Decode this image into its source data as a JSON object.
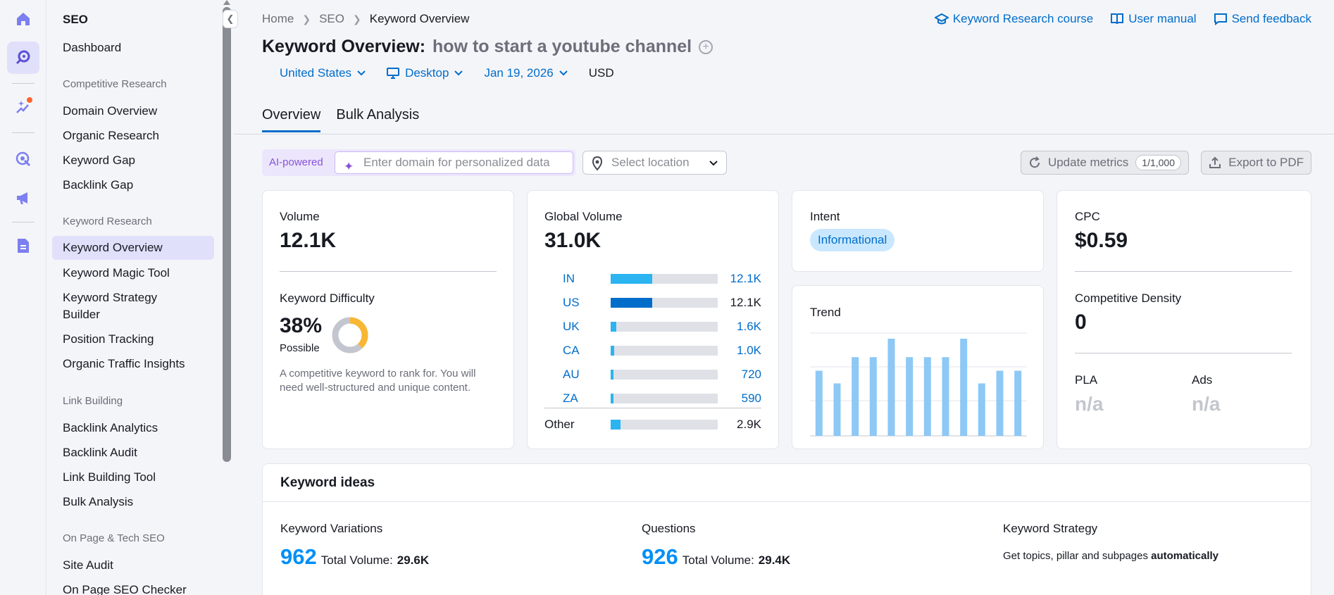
{
  "sidebar": {
    "title": "SEO",
    "dashboard": "Dashboard",
    "sections": {
      "competitive": "Competitive Research",
      "keyword": "Keyword Research",
      "link": "Link Building",
      "onpage": "On Page & Tech SEO"
    },
    "competitive_items": [
      "Domain Overview",
      "Organic Research",
      "Keyword Gap",
      "Backlink Gap"
    ],
    "keyword_items": [
      "Keyword Overview",
      "Keyword Magic Tool",
      "Keyword Strategy Builder",
      "Position Tracking",
      "Organic Traffic Insights"
    ],
    "link_items": [
      "Backlink Analytics",
      "Backlink Audit",
      "Link Building Tool",
      "Bulk Analysis"
    ],
    "onpage_items": [
      "Site Audit",
      "On Page SEO Checker"
    ]
  },
  "breadcrumb": {
    "home": "Home",
    "seo": "SEO",
    "current": "Keyword Overview"
  },
  "top_links": {
    "course": "Keyword Research course",
    "manual": "User manual",
    "feedback": "Send feedback"
  },
  "title": {
    "prefix": "Keyword Overview:",
    "keyword": "how to start a youtube channel"
  },
  "filters": {
    "country": "United States",
    "device": "Desktop",
    "date": "Jan 19, 2026",
    "currency": "USD"
  },
  "tabs": {
    "overview": "Overview",
    "bulk": "Bulk Analysis"
  },
  "toolbar": {
    "ai_label": "AI-powered",
    "domain_placeholder": "Enter domain for personalized data",
    "location_placeholder": "Select location",
    "update_label": "Update metrics",
    "update_count": "1/1,000",
    "export_label": "Export to PDF"
  },
  "volume": {
    "label": "Volume",
    "value": "12.1K"
  },
  "difficulty": {
    "label": "Keyword Difficulty",
    "value": "38%",
    "percent": 38,
    "level": "Possible",
    "description": "A competitive keyword to rank for. You will need well-structured and unique content.",
    "color": "#f8b733"
  },
  "global_volume": {
    "label": "Global Volume",
    "value": "31.0K",
    "rows": [
      {
        "code": "IN",
        "value": "12.1K",
        "fraction": 0.39,
        "color": "#2bb4f0"
      },
      {
        "code": "US",
        "value": "12.1K",
        "fraction": 0.39,
        "color": "#006dca"
      },
      {
        "code": "UK",
        "value": "1.6K",
        "fraction": 0.05,
        "color": "#2bb4f0"
      },
      {
        "code": "CA",
        "value": "1.0K",
        "fraction": 0.03,
        "color": "#2bb4f0"
      },
      {
        "code": "AU",
        "value": "720",
        "fraction": 0.025,
        "color": "#2bb4f0"
      },
      {
        "code": "ZA",
        "value": "590",
        "fraction": 0.02,
        "color": "#2bb4f0"
      }
    ],
    "other_label": "Other",
    "other_value": "2.9K",
    "other_fraction": 0.09
  },
  "intent": {
    "label": "Intent",
    "value": "Informational"
  },
  "trend": {
    "label": "Trend",
    "values": [
      0.67,
      0.54,
      0.81,
      0.81,
      1.0,
      0.81,
      0.81,
      0.81,
      1.0,
      0.54,
      0.67,
      0.67
    ],
    "color": "#8ec8f5"
  },
  "cpc": {
    "label": "CPC",
    "value": "$0.59"
  },
  "density": {
    "label": "Competitive Density",
    "value": "0"
  },
  "pla": {
    "label": "PLA",
    "value": "n/a"
  },
  "ads": {
    "label": "Ads",
    "value": "n/a"
  },
  "ideas": {
    "title": "Keyword ideas",
    "variations_label": "Keyword Variations",
    "variations_count": "962",
    "variations_volume_label": "Total Volume:",
    "variations_volume": "29.6K",
    "questions_label": "Questions",
    "questions_count": "926",
    "questions_volume_label": "Total Volume:",
    "questions_volume": "29.4K",
    "strategy_label": "Keyword Strategy",
    "strategy_text": "Get topics, pillar and subpages",
    "strategy_bold": "automatically"
  }
}
